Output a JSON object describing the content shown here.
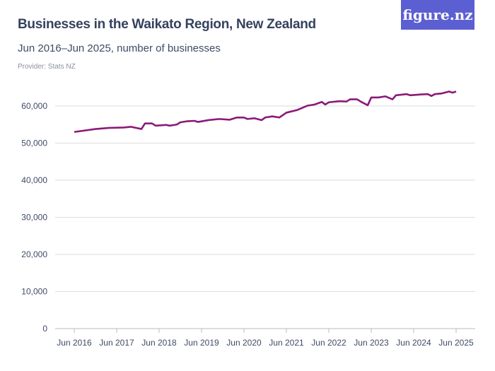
{
  "title": "Businesses in the Waikato Region, New Zealand",
  "subtitle": "Jun 2016–Jun 2025, number of businesses",
  "provider": "Provider: Stats NZ",
  "logo": "figure.nz",
  "colors": {
    "line": "#8b1a78",
    "grid": "#dddddd",
    "logo_bg": "#5c5fd1"
  },
  "chart_data": {
    "type": "line",
    "title": "Businesses in the Waikato Region, New Zealand",
    "ylim": [
      0,
      65000
    ],
    "grid": true,
    "y_ticks": [
      "0",
      "10,000",
      "20,000",
      "30,000",
      "40,000",
      "50,000",
      "60,000"
    ],
    "y_tick_values": [
      0,
      10000,
      20000,
      30000,
      40000,
      50000,
      60000
    ],
    "x_ticks": [
      "Jun 2016",
      "Jun 2017",
      "Jun 2018",
      "Jun 2019",
      "Jun 2020",
      "Jun 2021",
      "Jun 2022",
      "Jun 2023",
      "Jun 2024",
      "Jun 2025"
    ],
    "series": [
      {
        "x": [
          "2016-06",
          "2016-12",
          "2017-04",
          "2017-08",
          "2017-10",
          "2018-01",
          "2018-02",
          "2018-04",
          "2018-05",
          "2018-08",
          "2018-09",
          "2018-11",
          "2018-12",
          "2019-02",
          "2019-04",
          "2019-05",
          "2019-08",
          "2019-11",
          "2020-02",
          "2020-04",
          "2020-06",
          "2020-07",
          "2020-09",
          "2020-11",
          "2020-12",
          "2021-02",
          "2021-04",
          "2021-06",
          "2021-09",
          "2021-11",
          "2021-12",
          "2022-02",
          "2022-04",
          "2022-05",
          "2022-06",
          "2022-09",
          "2022-11",
          "2022-12",
          "2023-02",
          "2023-03",
          "2023-05",
          "2023-06",
          "2023-08",
          "2023-10",
          "2023-12",
          "2024-01",
          "2024-04",
          "2024-05",
          "2024-08",
          "2024-10",
          "2024-11",
          "2024-12",
          "2025-02",
          "2025-04",
          "2025-05",
          "2025-06"
        ],
        "values": [
          53000,
          53800,
          54100,
          54200,
          54400,
          53800,
          55300,
          55300,
          54700,
          54900,
          54700,
          55000,
          55600,
          55900,
          56000,
          55700,
          56200,
          56500,
          56300,
          56900,
          56900,
          56500,
          56700,
          56200,
          56900,
          57200,
          56900,
          58200,
          58900,
          59700,
          60100,
          60400,
          61100,
          60400,
          61000,
          61300,
          61200,
          61800,
          61800,
          61200,
          60200,
          62300,
          62300,
          62600,
          61800,
          62900,
          63200,
          62900,
          63100,
          63200,
          62700,
          63200,
          63400,
          63900,
          63600,
          63900
        ]
      }
    ]
  }
}
